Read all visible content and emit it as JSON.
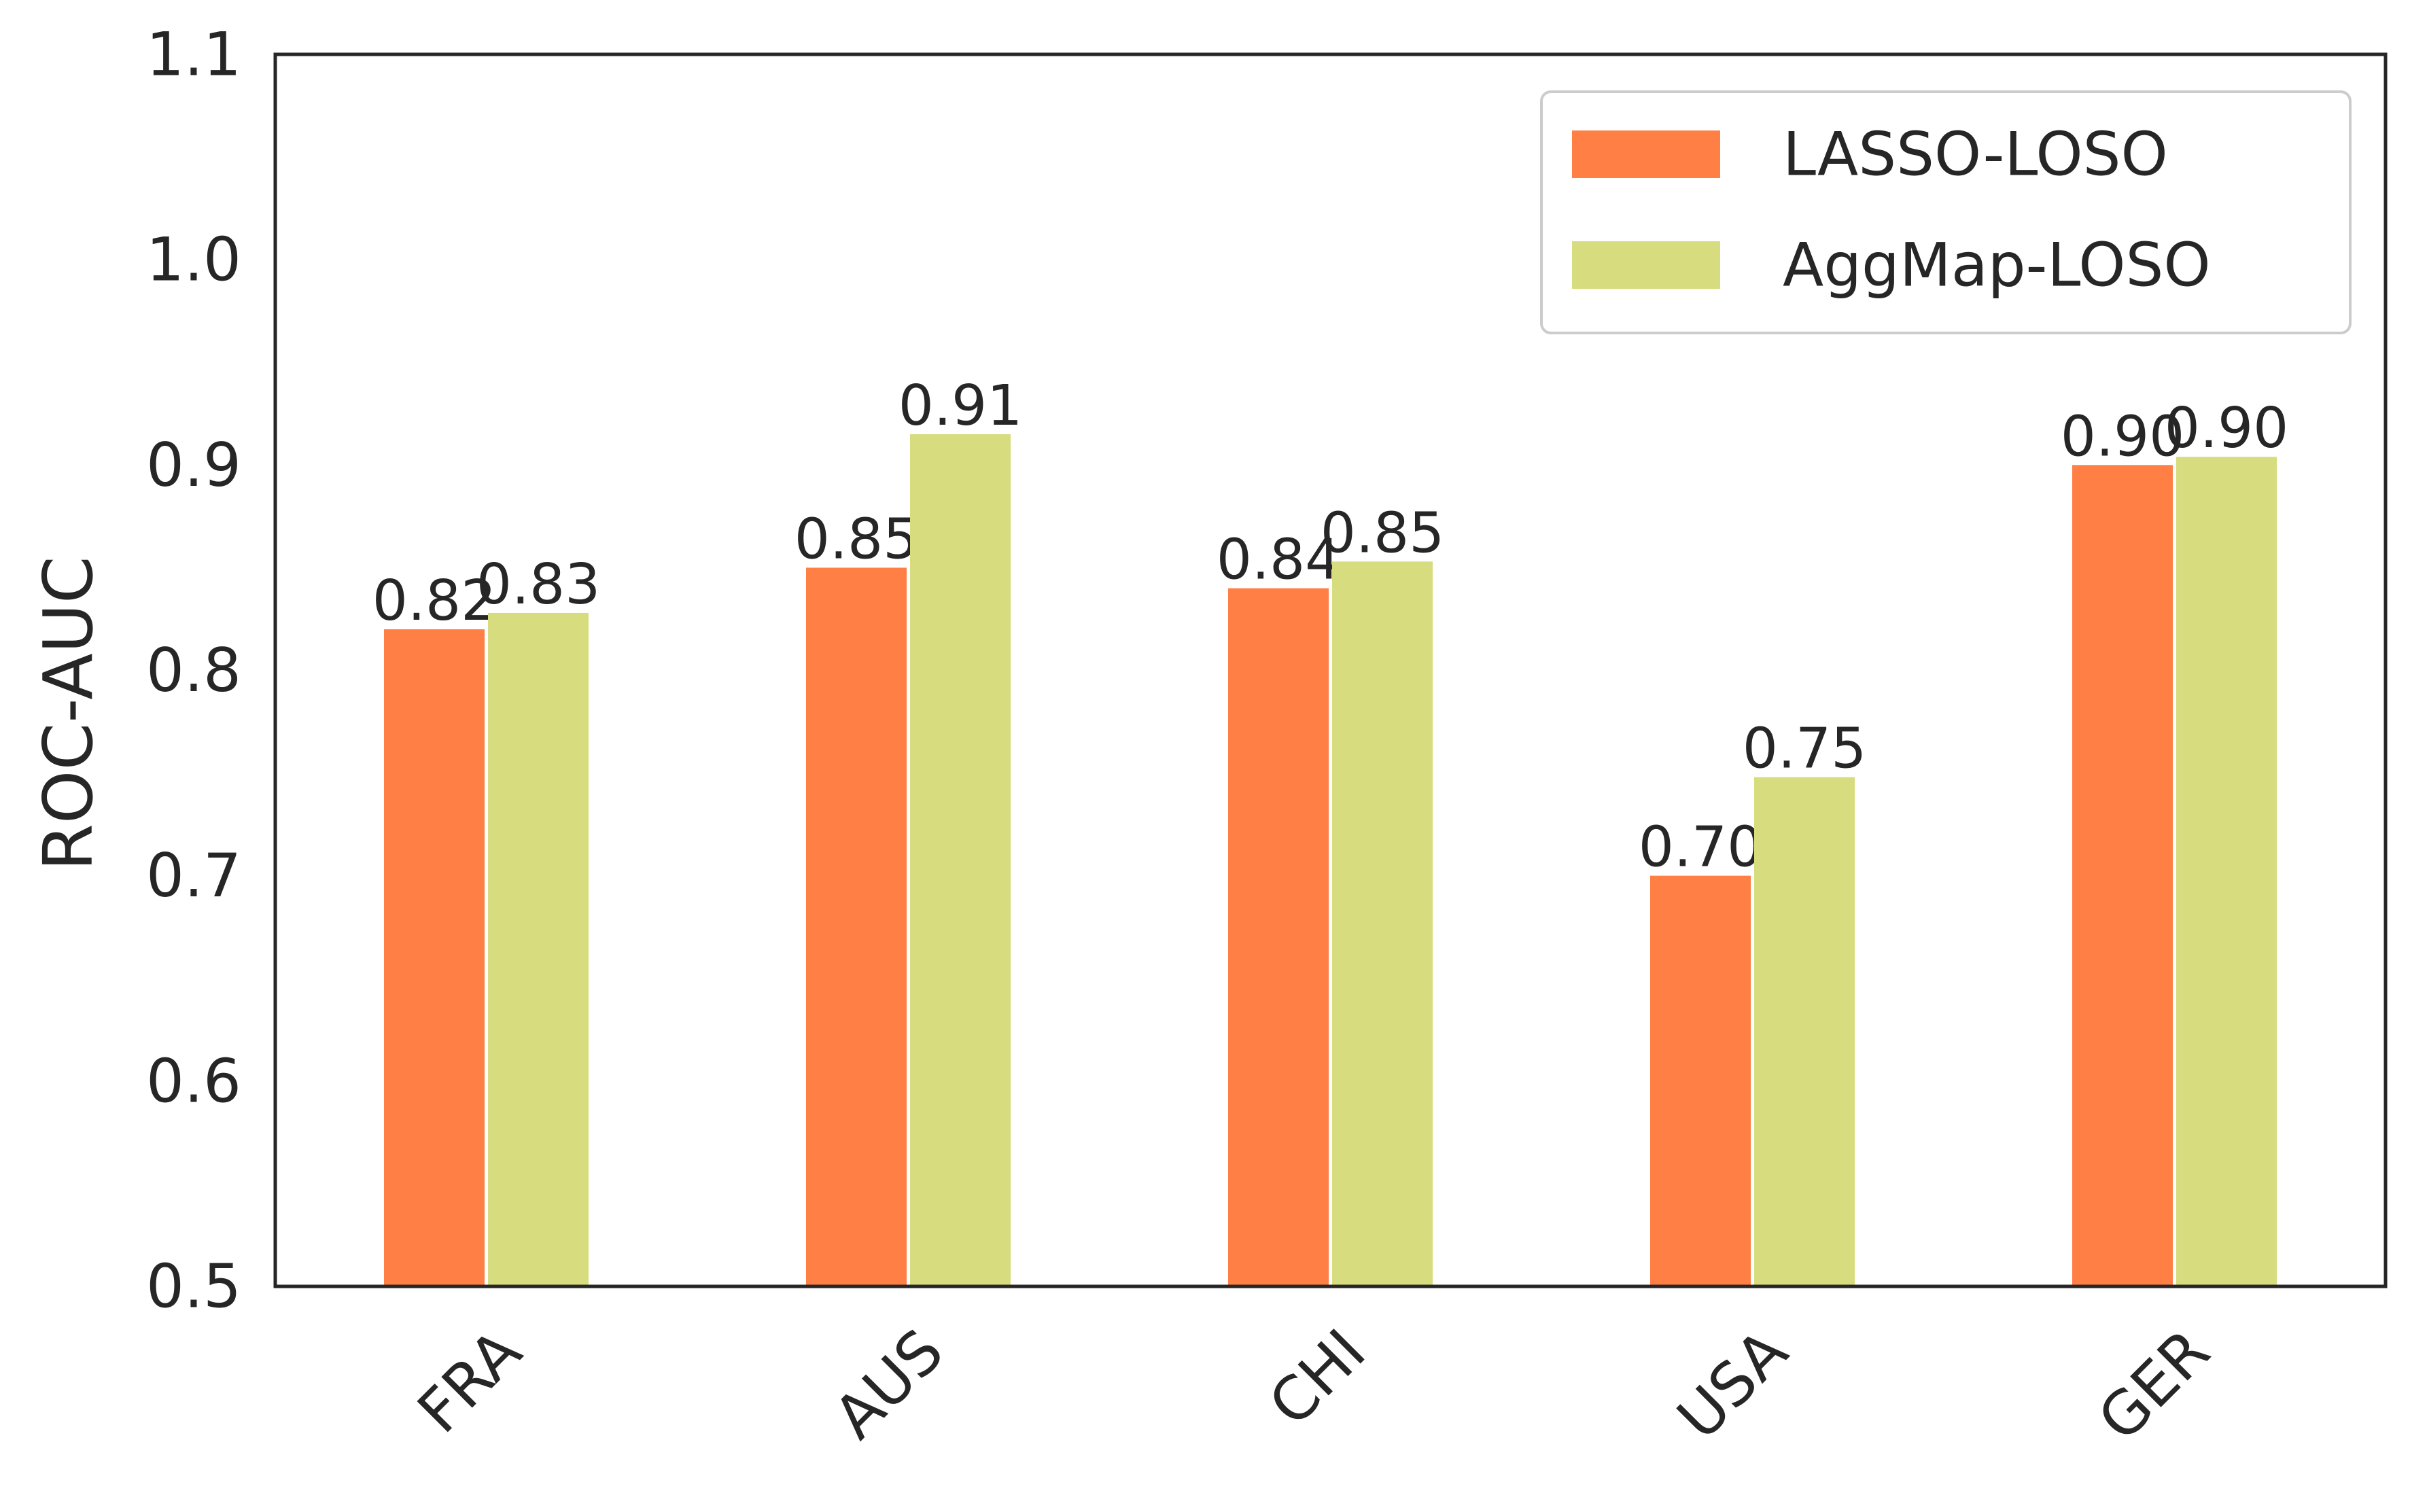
{
  "chart_data": {
    "type": "bar",
    "title": "",
    "xlabel": "",
    "ylabel": "ROC-AUC",
    "ylim": [
      0.5,
      1.1
    ],
    "yticks": [
      "0.5",
      "0.6",
      "0.7",
      "0.8",
      "0.9",
      "1.0",
      "1.1"
    ],
    "categories": [
      "FRA",
      "AUS",
      "CHI",
      "USA",
      "GER"
    ],
    "series": [
      {
        "name": "LASSO-LOSO",
        "color": "#ff7f45",
        "values": [
          0.82,
          0.85,
          0.84,
          0.7,
          0.9
        ],
        "labels": [
          "0.82",
          "0.85",
          "0.84",
          "0.70",
          "0.90"
        ]
      },
      {
        "name": "AggMap-LOSO",
        "color": "#d7dd7e",
        "values": [
          0.828,
          0.915,
          0.853,
          0.748,
          0.904
        ],
        "labels": [
          "0.83",
          "0.91",
          "0.85",
          "0.75",
          "0.90"
        ]
      }
    ],
    "grid": false,
    "legend_position": "top-right"
  }
}
